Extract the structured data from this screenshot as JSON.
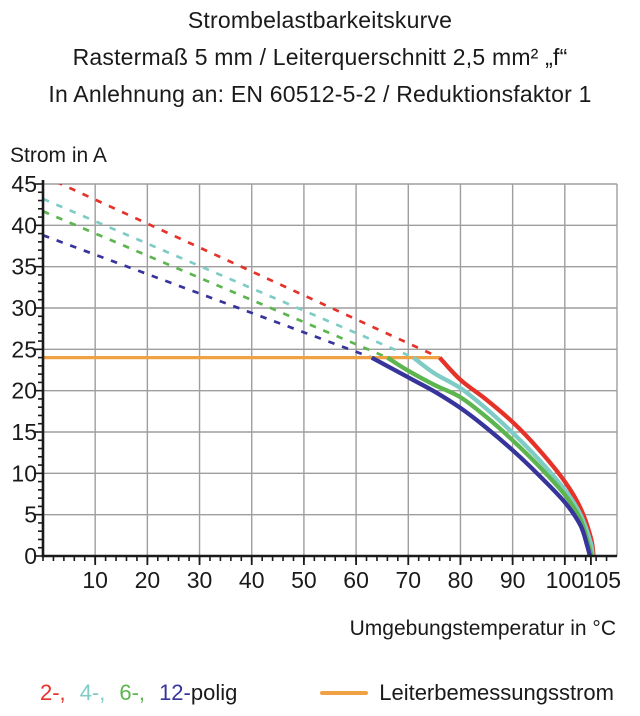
{
  "title": {
    "line1": "Strombelastbarkeitskurve",
    "line2": "Rastermaß 5 mm / Leiterquerschnitt 2,5 mm² „f“",
    "line3": "In Anlehnung an: EN 60512-5-2 / Reduktionsfaktor 1"
  },
  "chart_data": {
    "type": "line",
    "title": "Strombelastbarkeitskurve",
    "xlabel": "Umgebungstemperatur in °C",
    "ylabel": "Strom in A",
    "xlim": [
      0,
      110
    ],
    "ylim": [
      0,
      45
    ],
    "x_ticks": [
      10,
      20,
      30,
      40,
      50,
      60,
      70,
      80,
      90,
      100,
      105
    ],
    "y_ticks": [
      0,
      5,
      10,
      15,
      20,
      25,
      30,
      35,
      40,
      45
    ],
    "x_minor_step": 2,
    "y_minor_step": 1,
    "grid": true,
    "grid_color": "#9E9E9E",
    "axis_color": "#1a1a1a",
    "rated_current": {
      "name": "Leiterbemessungsstrom",
      "value": 24,
      "x_start": 0,
      "x_end": 76,
      "color": "#EFA143"
    },
    "series": [
      {
        "name": "2-polig",
        "color": "#E5332A",
        "dashed": [
          [
            0,
            46
          ],
          [
            76,
            24
          ]
        ],
        "solid": [
          [
            76,
            24
          ],
          [
            80,
            21.3
          ],
          [
            85,
            18.9
          ],
          [
            90,
            16.2
          ],
          [
            95,
            12.9
          ],
          [
            100,
            9.0
          ],
          [
            103,
            5.8
          ],
          [
            105,
            2.2
          ],
          [
            105.5,
            0
          ]
        ]
      },
      {
        "name": "4-polig",
        "color": "#7FCCC6",
        "dashed": [
          [
            0,
            43.2
          ],
          [
            71,
            24
          ]
        ],
        "solid": [
          [
            71,
            24
          ],
          [
            75,
            22.1
          ],
          [
            80,
            20.3
          ],
          [
            85,
            17.8
          ],
          [
            90,
            14.9
          ],
          [
            95,
            11.7
          ],
          [
            100,
            8.0
          ],
          [
            103,
            5.0
          ],
          [
            105,
            1.5
          ],
          [
            105.3,
            0
          ]
        ]
      },
      {
        "name": "6-polig",
        "color": "#5CB54E",
        "dashed": [
          [
            0,
            41.7
          ],
          [
            66,
            24
          ]
        ],
        "solid": [
          [
            66,
            24
          ],
          [
            70,
            22.4
          ],
          [
            75,
            20.7
          ],
          [
            80,
            19.2
          ],
          [
            85,
            16.8
          ],
          [
            90,
            14.0
          ],
          [
            95,
            10.9
          ],
          [
            100,
            7.4
          ],
          [
            103,
            4.4
          ],
          [
            104.6,
            1.2
          ],
          [
            105.1,
            0
          ]
        ]
      },
      {
        "name": "12-polig",
        "color": "#37349B",
        "dashed": [
          [
            0,
            38.8
          ],
          [
            63,
            24
          ]
        ],
        "solid": [
          [
            63,
            24
          ],
          [
            70,
            21.6
          ],
          [
            75,
            19.9
          ],
          [
            80,
            17.9
          ],
          [
            85,
            15.5
          ],
          [
            90,
            12.8
          ],
          [
            95,
            9.8
          ],
          [
            100,
            6.5
          ],
          [
            103,
            3.7
          ],
          [
            104.3,
            1.2
          ],
          [
            104.8,
            0
          ]
        ]
      }
    ]
  },
  "legend": {
    "poles": [
      {
        "text": "2-,",
        "color": "#E5332A"
      },
      {
        "text": "4-,",
        "color": "#7FCCC6"
      },
      {
        "text": "6-,",
        "color": "#5CB54E"
      },
      {
        "text": "12-",
        "color": "#37349B"
      }
    ],
    "suffix": "polig",
    "rated": {
      "label": "Leiterbemessungsstrom",
      "color": "#EFA143"
    }
  }
}
